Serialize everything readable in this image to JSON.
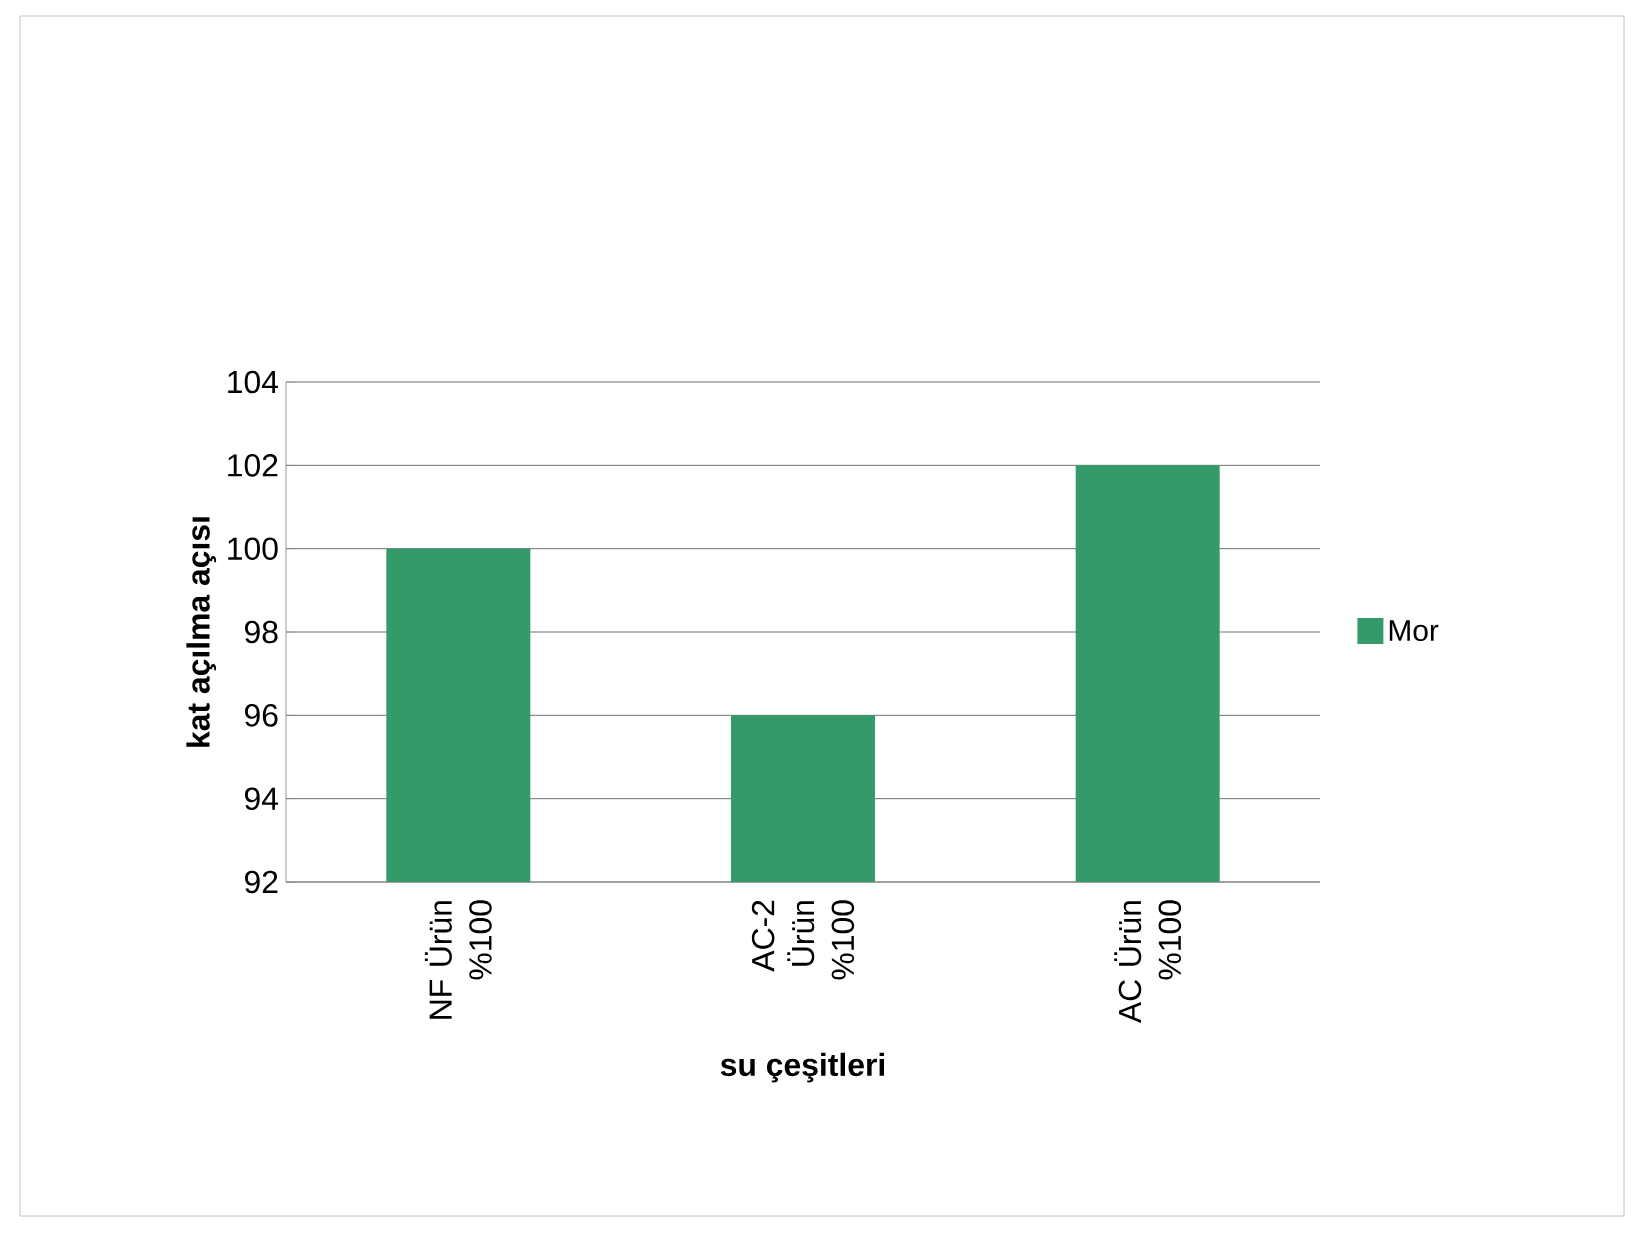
{
  "chart_data": {
    "type": "bar",
    "xlabel": "su çeşitleri",
    "ylabel": "kat açılma açısı",
    "categories": [
      "NF Ürün %100",
      "AC-2 Ürün %100",
      "AC Ürün %100"
    ],
    "series": [
      {
        "name": "Mor",
        "color": "#359a69",
        "values": [
          100,
          96,
          102
        ]
      }
    ],
    "ylim": [
      92,
      104
    ],
    "yticks": [
      92,
      94,
      96,
      98,
      100,
      102,
      104
    ],
    "grid": "y",
    "legend": "right"
  }
}
